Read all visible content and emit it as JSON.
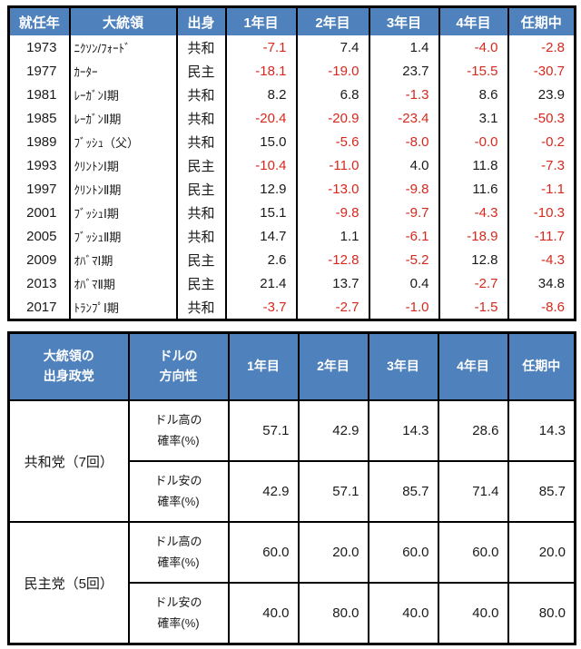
{
  "colors": {
    "header_bg": "#4f81bd",
    "header_text": "#ffffff",
    "negative_value": "#d7281d",
    "positive_value": "#1a1a1a",
    "border": "#000000"
  },
  "chart_data": [
    {
      "type": "table",
      "columns": [
        "就任年",
        "大統領",
        "出身",
        "1年目",
        "2年目",
        "3年目",
        "4年目",
        "任期中"
      ],
      "rows": [
        [
          "1973",
          "ﾆｸｿﾝ/ﾌｫｰﾄﾞ",
          "共和",
          "-7.1",
          "7.4",
          "1.4",
          "-4.0",
          "-2.8"
        ],
        [
          "1977",
          "ｶｰﾀｰ",
          "民主",
          "-18.1",
          "-19.0",
          "23.7",
          "-15.5",
          "-30.7"
        ],
        [
          "1981",
          "ﾚｰｶﾞﾝⅠ期",
          "共和",
          "8.2",
          "6.8",
          "-1.3",
          "8.6",
          "23.9"
        ],
        [
          "1985",
          "ﾚｰｶﾞﾝⅡ期",
          "共和",
          "-20.4",
          "-20.9",
          "-23.4",
          "3.1",
          "-50.3"
        ],
        [
          "1989",
          "ﾌﾞｯｼｭ（父）",
          "共和",
          "15.0",
          "-5.6",
          "-8.0",
          "-0.0",
          "-0.2"
        ],
        [
          "1993",
          "ｸﾘﾝﾄﾝⅠ期",
          "民主",
          "-10.4",
          "-11.0",
          "4.0",
          "11.8",
          "-7.3"
        ],
        [
          "1997",
          "ｸﾘﾝﾄﾝⅡ期",
          "民主",
          "12.9",
          "-13.0",
          "-9.8",
          "11.6",
          "-1.1"
        ],
        [
          "2001",
          "ﾌﾞｯｼｭⅠ期",
          "共和",
          "15.1",
          "-9.8",
          "-9.7",
          "-4.3",
          "-10.3"
        ],
        [
          "2005",
          "ﾌﾞｯｼｭⅡ期",
          "共和",
          "14.7",
          "1.1",
          "-6.1",
          "-18.9",
          "-11.7"
        ],
        [
          "2009",
          "ｵﾊﾞﾏⅠ期",
          "民主",
          "2.6",
          "-12.8",
          "-5.2",
          "12.8",
          "-4.3"
        ],
        [
          "2013",
          "ｵﾊﾞﾏⅡ期",
          "民主",
          "21.4",
          "13.7",
          "0.4",
          "-2.7",
          "34.8"
        ],
        [
          "2017",
          "ﾄﾗﾝﾌﾟⅠ期",
          "共和",
          "-3.7",
          "-2.7",
          "-1.0",
          "-1.5",
          "-8.6"
        ]
      ]
    },
    {
      "type": "table",
      "columns": [
        "大統領の\n出身政党",
        "ドルの\n方向性",
        "1年目",
        "2年目",
        "3年目",
        "4年目",
        "任期中"
      ],
      "groups": [
        {
          "party": "共和党（7回）",
          "rows": [
            {
              "direction": "ドル高の\n確率(%)",
              "values": [
                "57.1",
                "42.9",
                "14.3",
                "28.6",
                "14.3"
              ]
            },
            {
              "direction": "ドル安の\n確率(%)",
              "values": [
                "42.9",
                "57.1",
                "85.7",
                "71.4",
                "85.7"
              ]
            }
          ]
        },
        {
          "party": "民主党（5回）",
          "rows": [
            {
              "direction": "ドル高の\n確率(%)",
              "values": [
                "60.0",
                "20.0",
                "60.0",
                "60.0",
                "20.0"
              ]
            },
            {
              "direction": "ドル安の\n確率(%)",
              "values": [
                "40.0",
                "80.0",
                "40.0",
                "40.0",
                "80.0"
              ]
            }
          ]
        }
      ]
    }
  ]
}
